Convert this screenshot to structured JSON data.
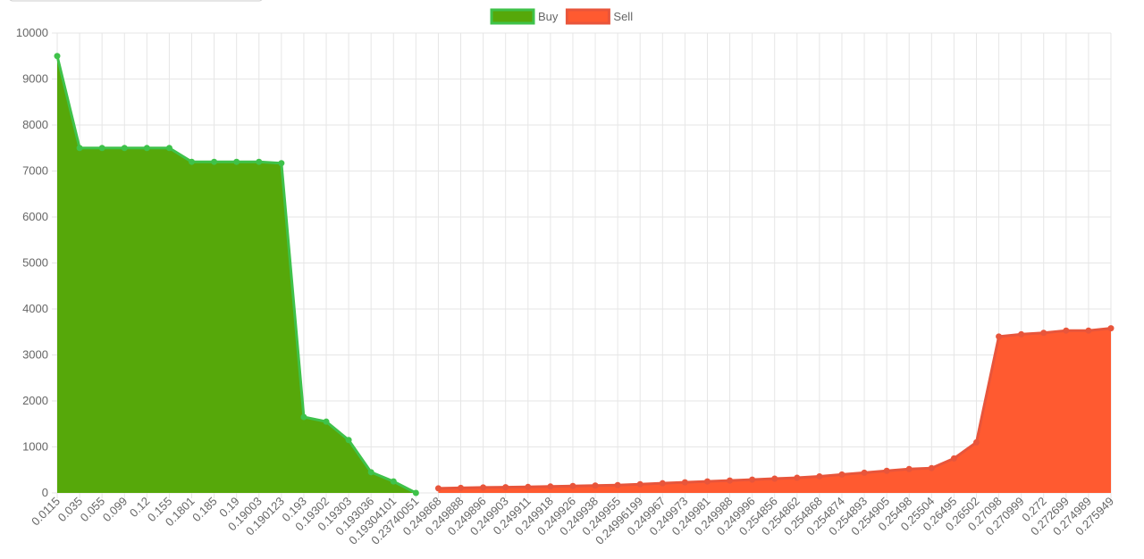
{
  "chart_data": {
    "type": "area",
    "categories": [
      "0.0115",
      "0.035",
      "0.055",
      "0.099",
      "0.12",
      "0.155",
      "0.1801",
      "0.185",
      "0.19",
      "0.19003",
      "0.190123",
      "0.193",
      "0.19302",
      "0.19303",
      "0.193036",
      "0.19304101",
      "0.23740051",
      "0.249868",
      "0.249888",
      "0.249896",
      "0.249903",
      "0.249911",
      "0.249918",
      "0.249926",
      "0.249938",
      "0.249955",
      "0.24996199",
      "0.249967",
      "0.249973",
      "0.249981",
      "0.249988",
      "0.249996",
      "0.254856",
      "0.254862",
      "0.254868",
      "0.254874",
      "0.254893",
      "0.254905",
      "0.25498",
      "0.25504",
      "0.26495",
      "0.26502",
      "0.27098",
      "0.270999",
      "0.272",
      "0.272699",
      "0.274989",
      "0.275949"
    ],
    "series": [
      {
        "name": "Buy",
        "color": "#56a80a",
        "line_color": "#3fc24a",
        "values": [
          9500,
          7500,
          7500,
          7500,
          7500,
          7500,
          7200,
          7200,
          7200,
          7200,
          7170,
          1650,
          1550,
          1150,
          450,
          250,
          0,
          null,
          null,
          null,
          null,
          null,
          null,
          null,
          null,
          null,
          null,
          null,
          null,
          null,
          null,
          null,
          null,
          null,
          null,
          null,
          null,
          null,
          null,
          null,
          null,
          null,
          null,
          null,
          null,
          null,
          null,
          null
        ]
      },
      {
        "name": "Sell",
        "color": "#ff5a30",
        "line_color": "#e8553b",
        "values": [
          null,
          null,
          null,
          null,
          null,
          null,
          null,
          null,
          null,
          null,
          null,
          null,
          null,
          null,
          null,
          null,
          null,
          100,
          110,
          120,
          125,
          130,
          140,
          150,
          160,
          170,
          190,
          210,
          230,
          250,
          270,
          290,
          310,
          330,
          360,
          400,
          440,
          480,
          520,
          540,
          750,
          1100,
          3400,
          3450,
          3480,
          3530,
          3530,
          3580
        ]
      }
    ],
    "ylim": [
      0,
      10000
    ],
    "yticks": [
      0,
      1000,
      2000,
      3000,
      4000,
      5000,
      6000,
      7000,
      8000,
      9000,
      10000
    ],
    "grid": true,
    "legend": "top"
  }
}
